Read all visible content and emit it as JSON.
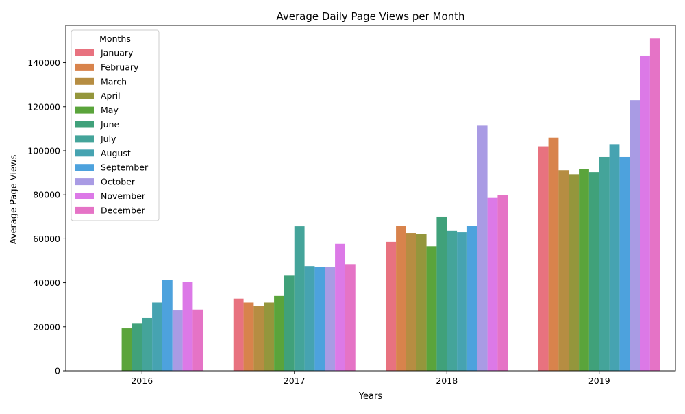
{
  "chart_data": {
    "type": "bar",
    "title": "Average Daily Page Views per Month",
    "xlabel": "Years",
    "ylabel": "Average Page Views",
    "categories": [
      "2016",
      "2017",
      "2018",
      "2019"
    ],
    "ylim": [
      0,
      157000
    ],
    "yticks": [
      0,
      20000,
      40000,
      60000,
      80000,
      100000,
      120000,
      140000
    ],
    "grid": false,
    "legend": {
      "title": "Months",
      "placement": "top-left"
    },
    "series": [
      {
        "name": "January",
        "color": "#e8727f",
        "values": [
          null,
          32800,
          58600,
          102000
        ]
      },
      {
        "name": "February",
        "color": "#d8834c",
        "values": [
          null,
          31000,
          65800,
          106000
        ]
      },
      {
        "name": "March",
        "color": "#b68d42",
        "values": [
          null,
          29400,
          62600,
          91200
        ]
      },
      {
        "name": "April",
        "color": "#94963c",
        "values": [
          null,
          31000,
          62200,
          89300
        ]
      },
      {
        "name": "May",
        "color": "#5aa43b",
        "values": [
          19300,
          34000,
          56600,
          91600
        ]
      },
      {
        "name": "June",
        "color": "#40a17a",
        "values": [
          21700,
          43500,
          70100,
          90300
        ]
      },
      {
        "name": "July",
        "color": "#44a49a",
        "values": [
          24000,
          65700,
          63600,
          97200
        ]
      },
      {
        "name": "August",
        "color": "#46a3b1",
        "values": [
          31000,
          47600,
          62900,
          103000
        ]
      },
      {
        "name": "September",
        "color": "#4da2dd",
        "values": [
          41300,
          47200,
          65800,
          97200
        ]
      },
      {
        "name": "October",
        "color": "#a99be4",
        "values": [
          27400,
          47300,
          111400,
          123000
        ]
      },
      {
        "name": "November",
        "color": "#dc79e7",
        "values": [
          40300,
          57700,
          78600,
          143300
        ]
      },
      {
        "name": "December",
        "color": "#e573c6",
        "values": [
          27800,
          48500,
          80000,
          151000
        ]
      }
    ]
  }
}
